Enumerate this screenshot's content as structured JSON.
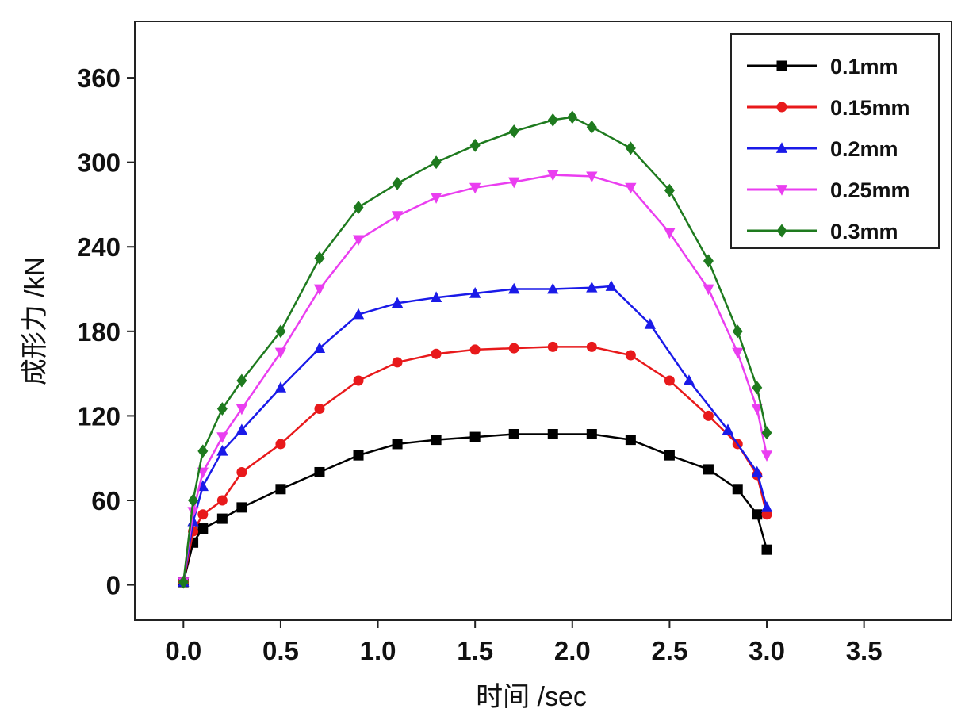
{
  "chart_data": {
    "type": "scatter",
    "title": "",
    "xlabel": "时间 /sec",
    "ylabel": "成形力 /kN",
    "xlim": [
      -0.25,
      3.95
    ],
    "ylim": [
      -25,
      400
    ],
    "xticks": [
      "0.0",
      "0.5",
      "1.0",
      "1.5",
      "2.0",
      "2.5",
      "3.0",
      "3.5"
    ],
    "yticks": [
      "0",
      "60",
      "120",
      "180",
      "240",
      "300",
      "360"
    ],
    "grid": false,
    "legend_position": "top-right",
    "series": [
      {
        "name": "0.1mm",
        "color": "#000000",
        "marker": "square",
        "x": [
          0.0,
          0.05,
          0.1,
          0.2,
          0.3,
          0.5,
          0.7,
          0.9,
          1.1,
          1.3,
          1.5,
          1.7,
          1.9,
          2.1,
          2.3,
          2.5,
          2.7,
          2.85,
          2.95,
          3.0
        ],
        "y": [
          2,
          30,
          40,
          47,
          55,
          68,
          80,
          92,
          100,
          103,
          105,
          107,
          107,
          107,
          103,
          92,
          82,
          68,
          50,
          25
        ]
      },
      {
        "name": "0.15mm",
        "color": "#e8191b",
        "marker": "circle",
        "x": [
          0.0,
          0.05,
          0.1,
          0.2,
          0.3,
          0.5,
          0.7,
          0.9,
          1.1,
          1.3,
          1.5,
          1.7,
          1.9,
          2.1,
          2.3,
          2.5,
          2.7,
          2.85,
          2.95,
          3.0
        ],
        "y": [
          2,
          38,
          50,
          60,
          80,
          100,
          125,
          145,
          158,
          164,
          167,
          168,
          169,
          169,
          163,
          145,
          120,
          100,
          78,
          50
        ]
      },
      {
        "name": "0.2mm",
        "color": "#1a1ae8",
        "marker": "triangle-up",
        "x": [
          0.0,
          0.05,
          0.1,
          0.2,
          0.3,
          0.5,
          0.7,
          0.9,
          1.1,
          1.3,
          1.5,
          1.7,
          1.9,
          2.1,
          2.2,
          2.4,
          2.6,
          2.8,
          2.95,
          3.0
        ],
        "y": [
          2,
          45,
          70,
          95,
          110,
          140,
          168,
          192,
          200,
          204,
          207,
          210,
          210,
          211,
          212,
          185,
          145,
          110,
          80,
          55
        ]
      },
      {
        "name": "0.25mm",
        "color": "#ea3ef0",
        "marker": "triangle-down",
        "x": [
          0.0,
          0.05,
          0.1,
          0.2,
          0.3,
          0.5,
          0.7,
          0.9,
          1.1,
          1.3,
          1.5,
          1.7,
          1.9,
          2.1,
          2.3,
          2.5,
          2.7,
          2.85,
          2.95,
          3.0
        ],
        "y": [
          2,
          52,
          80,
          105,
          125,
          165,
          210,
          245,
          262,
          275,
          282,
          286,
          291,
          290,
          282,
          250,
          210,
          165,
          125,
          92
        ]
      },
      {
        "name": "0.3mm",
        "color": "#1e7a1e",
        "marker": "diamond",
        "x": [
          0.0,
          0.05,
          0.1,
          0.2,
          0.3,
          0.5,
          0.7,
          0.9,
          1.1,
          1.3,
          1.5,
          1.7,
          1.9,
          2.0,
          2.1,
          2.3,
          2.5,
          2.7,
          2.85,
          2.95,
          3.0
        ],
        "y": [
          2,
          60,
          95,
          125,
          145,
          180,
          232,
          268,
          285,
          300,
          312,
          322,
          330,
          332,
          325,
          310,
          280,
          230,
          180,
          140,
          108
        ]
      }
    ]
  }
}
